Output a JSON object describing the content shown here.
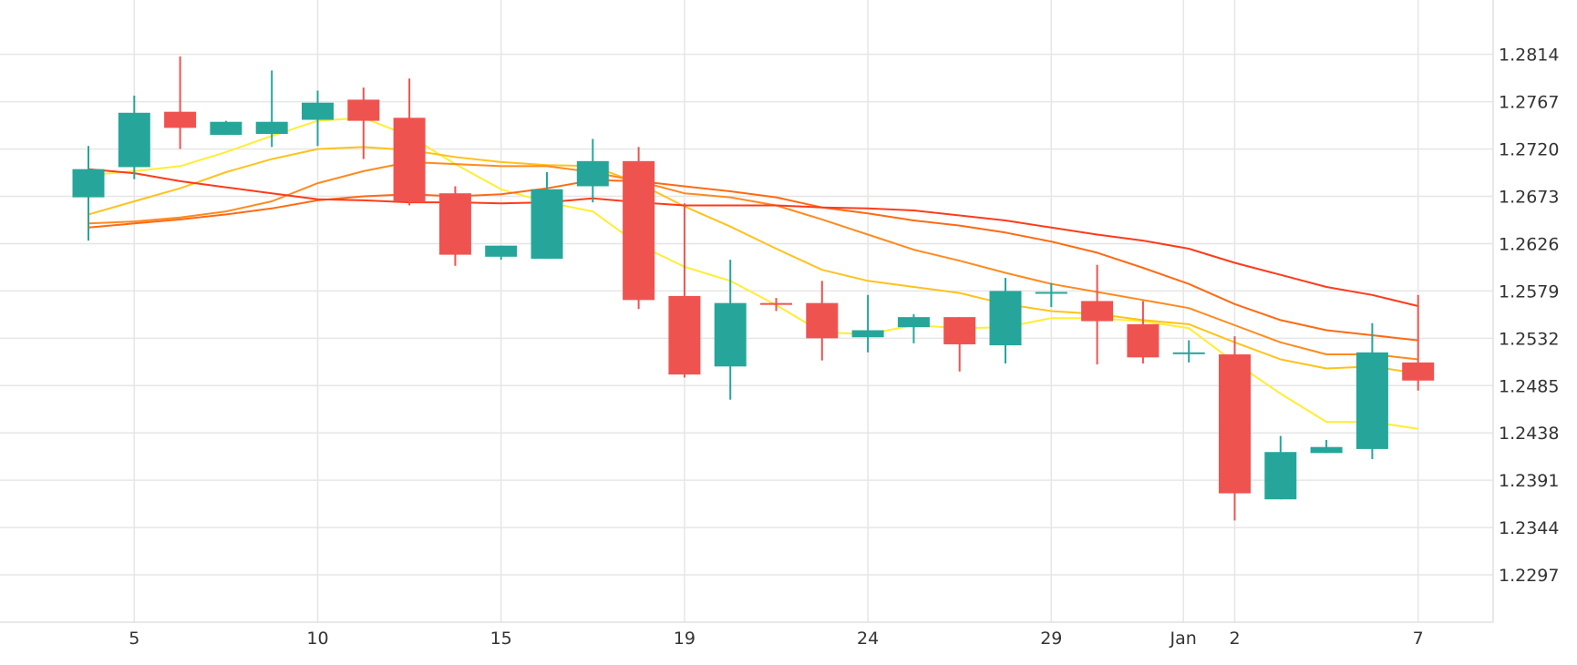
{
  "chart_data": {
    "type": "candlestick",
    "title": "",
    "xlabel": "",
    "ylabel": "",
    "ylim": [
      1.225,
      1.2868
    ],
    "grid": true,
    "y_ticks": [
      "1.2814",
      "1.2767",
      "1.2720",
      "1.2673",
      "1.2626",
      "1.2579",
      "1.2532",
      "1.2485",
      "1.2438",
      "1.2391",
      "1.2344",
      "1.2297"
    ],
    "x_ticks": [
      {
        "label": "5",
        "index": 1
      },
      {
        "label": "10",
        "index": 5
      },
      {
        "label": "15",
        "index": 9
      },
      {
        "label": "19",
        "index": 13
      },
      {
        "label": "24",
        "index": 17
      },
      {
        "label": "29",
        "index": 21
      },
      {
        "label": "Jan",
        "index": 24
      },
      {
        "label": "2",
        "index": 25
      },
      {
        "label": "7",
        "index": 29
      }
    ],
    "candles": [
      {
        "o": 1.2672,
        "h": 1.2723,
        "l": 1.2629,
        "c": 1.27
      },
      {
        "o": 1.2702,
        "h": 1.2773,
        "l": 1.269,
        "c": 1.2756
      },
      {
        "o": 1.2757,
        "h": 1.2812,
        "l": 1.272,
        "c": 1.2741
      },
      {
        "o": 1.2734,
        "h": 1.2748,
        "l": 1.2734,
        "c": 1.2747
      },
      {
        "o": 1.2735,
        "h": 1.2798,
        "l": 1.2722,
        "c": 1.2747
      },
      {
        "o": 1.2749,
        "h": 1.2778,
        "l": 1.2723,
        "c": 1.2766
      },
      {
        "o": 1.2769,
        "h": 1.2781,
        "l": 1.271,
        "c": 1.2748
      },
      {
        "o": 1.2751,
        "h": 1.279,
        "l": 1.2664,
        "c": 1.2668
      },
      {
        "o": 1.2676,
        "h": 1.2683,
        "l": 1.2604,
        "c": 1.2615
      },
      {
        "o": 1.2613,
        "h": 1.2624,
        "l": 1.261,
        "c": 1.2624
      },
      {
        "o": 1.2611,
        "h": 1.2697,
        "l": 1.2611,
        "c": 1.268
      },
      {
        "o": 1.2683,
        "h": 1.273,
        "l": 1.2667,
        "c": 1.2708
      },
      {
        "o": 1.2708,
        "h": 1.2722,
        "l": 1.2561,
        "c": 1.257
      },
      {
        "o": 1.2574,
        "h": 1.2666,
        "l": 1.2493,
        "c": 1.2496
      },
      {
        "o": 1.2504,
        "h": 1.261,
        "l": 1.2471,
        "c": 1.2567
      },
      {
        "o": 1.2567,
        "h": 1.2572,
        "l": 1.2559,
        "c": 1.2566
      },
      {
        "o": 1.2567,
        "h": 1.2589,
        "l": 1.251,
        "c": 1.2532
      },
      {
        "o": 1.2533,
        "h": 1.2575,
        "l": 1.2518,
        "c": 1.254
      },
      {
        "o": 1.2543,
        "h": 1.2556,
        "l": 1.2527,
        "c": 1.2553
      },
      {
        "o": 1.2553,
        "h": 1.2553,
        "l": 1.2499,
        "c": 1.2526
      },
      {
        "o": 1.2525,
        "h": 1.2592,
        "l": 1.2507,
        "c": 1.2579
      },
      {
        "o": 1.2577,
        "h": 1.2587,
        "l": 1.2563,
        "c": 1.2578
      },
      {
        "o": 1.2569,
        "h": 1.2605,
        "l": 1.2506,
        "c": 1.2549
      },
      {
        "o": 1.2546,
        "h": 1.2569,
        "l": 1.2507,
        "c": 1.2513
      },
      {
        "o": 1.2518,
        "h": 1.253,
        "l": 1.2508,
        "c": 1.2518
      },
      {
        "o": 1.2516,
        "h": 1.2534,
        "l": 1.2351,
        "c": 1.2378
      },
      {
        "o": 1.2372,
        "h": 1.2435,
        "l": 1.2372,
        "c": 1.2419
      },
      {
        "o": 1.2418,
        "h": 1.2431,
        "l": 1.2418,
        "c": 1.2424
      },
      {
        "o": 1.2422,
        "h": 1.2547,
        "l": 1.2412,
        "c": 1.2518
      },
      {
        "o": 1.2508,
        "h": 1.2575,
        "l": 1.248,
        "c": 1.249
      }
    ],
    "moving_averages": [
      {
        "color": "#ffee33",
        "values": [
          1.2694,
          1.2698,
          1.2703,
          1.2717,
          1.2733,
          1.2748,
          1.2751,
          1.2733,
          1.2705,
          1.268,
          1.2667,
          1.2658,
          1.2625,
          1.2603,
          1.2589,
          1.2565,
          1.2538,
          1.2536,
          1.2545,
          1.2542,
          1.2543,
          1.2552,
          1.2552,
          1.2549,
          1.2542,
          1.2508,
          1.2477,
          1.2449,
          1.2449,
          1.2442
        ]
      },
      {
        "color": "#ffc21c",
        "values": [
          1.2655,
          1.2668,
          1.2681,
          1.2697,
          1.271,
          1.272,
          1.2722,
          1.2719,
          1.2712,
          1.2707,
          1.2704,
          1.2703,
          1.2686,
          1.2663,
          1.2643,
          1.2621,
          1.26,
          1.2589,
          1.2583,
          1.2577,
          1.2566,
          1.2559,
          1.2556,
          1.255,
          1.2546,
          1.2528,
          1.2511,
          1.2502,
          1.2504,
          1.2497
        ]
      },
      {
        "color": "#ff8a1f",
        "values": [
          1.2646,
          1.2648,
          1.2652,
          1.2658,
          1.2668,
          1.2686,
          1.2698,
          1.2707,
          1.2705,
          1.2703,
          1.2703,
          1.2697,
          1.2688,
          1.2676,
          1.2672,
          1.2664,
          1.265,
          1.2635,
          1.262,
          1.2609,
          1.2597,
          1.2586,
          1.2578,
          1.257,
          1.2562,
          1.2545,
          1.2528,
          1.2516,
          1.2516,
          1.2511
        ]
      },
      {
        "color": "#ff6a13",
        "values": [
          1.2642,
          1.2646,
          1.265,
          1.2655,
          1.2661,
          1.2669,
          1.2673,
          1.2675,
          1.2673,
          1.2675,
          1.2681,
          1.2689,
          1.2688,
          1.2683,
          1.2678,
          1.2672,
          1.2662,
          1.2656,
          1.2649,
          1.2644,
          1.2637,
          1.2628,
          1.2617,
          1.2602,
          1.2586,
          1.2566,
          1.255,
          1.254,
          1.2535,
          1.253
        ]
      },
      {
        "color": "#ff3b1a",
        "values": [
          1.27,
          1.2696,
          1.2688,
          1.2682,
          1.2676,
          1.267,
          1.2669,
          1.2667,
          1.2667,
          1.2666,
          1.2667,
          1.2671,
          1.2667,
          1.2664,
          1.2664,
          1.2664,
          1.2662,
          1.2661,
          1.2659,
          1.2654,
          1.2649,
          1.2642,
          1.2635,
          1.2629,
          1.2621,
          1.2607,
          1.2595,
          1.2583,
          1.2575,
          1.2564
        ]
      }
    ],
    "colors": {
      "up": "#26a69a",
      "down": "#ef5350",
      "grid": "#e6e6e6",
      "axis": "#e0e0e0",
      "text": "#333333"
    }
  }
}
